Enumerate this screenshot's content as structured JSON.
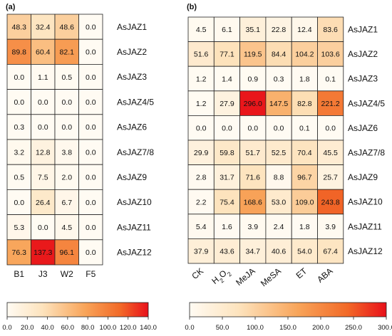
{
  "chart_data": [
    {
      "type": "heatmap",
      "panel_label": "(a)",
      "rows": [
        "AsJAZ1",
        "AsJAZ2",
        "AsJAZ3",
        "AsJAZ4/5",
        "AsJAZ6",
        "AsJAZ7/8",
        "AsJAZ9",
        "AsJAZ10",
        "AsJAZ11",
        "AsJAZ12"
      ],
      "columns": [
        "B1",
        "J3",
        "W2",
        "F5"
      ],
      "values": [
        [
          48.3,
          32.4,
          48.6,
          0.0
        ],
        [
          89.8,
          60.4,
          82.1,
          0.0
        ],
        [
          0.0,
          1.1,
          0.5,
          0.0
        ],
        [
          0.0,
          0.0,
          0.0,
          0.0
        ],
        [
          0.3,
          0.0,
          0.0,
          0.0
        ],
        [
          3.2,
          12.8,
          3.8,
          0.0
        ],
        [
          0.5,
          7.5,
          2.0,
          0.0
        ],
        [
          0.0,
          26.4,
          6.7,
          0.0
        ],
        [
          5.3,
          0.0,
          4.5,
          0.0
        ],
        [
          76.3,
          137.3,
          96.1,
          0.0
        ]
      ],
      "value_labels": [
        [
          "48.3",
          "32.4",
          "48.6",
          "0.0"
        ],
        [
          "89.8",
          "60.4",
          "82.1",
          "0.0"
        ],
        [
          "0.0",
          "1.1",
          "0.5",
          "0.0"
        ],
        [
          "0.0",
          "0.0",
          "0.0",
          "0.0"
        ],
        [
          "0.3",
          "0.0",
          "0.0",
          "0.0"
        ],
        [
          "3.2",
          "12.8",
          "3.8",
          "0.0"
        ],
        [
          "0.5",
          "7.5",
          "2.0",
          "0.0"
        ],
        [
          "0.0",
          "26.4",
          "6.7",
          "0.0"
        ],
        [
          "5.3",
          "0.0",
          "4.5",
          "0.0"
        ],
        [
          "76.3",
          "137.3",
          "96.1",
          "0.0"
        ]
      ],
      "colorbar": {
        "min": 0,
        "max": 140,
        "ticks": [
          0,
          20,
          40,
          60,
          80,
          100,
          120,
          140
        ],
        "tick_labels": [
          "0.0",
          "20.0",
          "40.0",
          "60.0",
          "80.0",
          "100.0",
          "120.0",
          "140.0"
        ]
      }
    },
    {
      "type": "heatmap",
      "panel_label": "(b)",
      "rows": [
        "AsJAZ1",
        "AsJAZ2",
        "AsJAZ3",
        "AsJAZ4/5",
        "AsJAZ6",
        "AsJAZ7/8",
        "AsJAZ9",
        "AsJAZ10",
        "AsJAZ11",
        "AsJAZ12"
      ],
      "columns": [
        "CK",
        "H2O2",
        "MeJA",
        "MeSA",
        "ET",
        "ABA"
      ],
      "values": [
        [
          4.5,
          6.1,
          35.1,
          22.8,
          12.4,
          83.6
        ],
        [
          51.6,
          77.1,
          119.5,
          84.4,
          104.2,
          103.6
        ],
        [
          1.2,
          1.4,
          0.9,
          0.3,
          1.8,
          0.1
        ],
        [
          1.2,
          27.9,
          296.0,
          147.5,
          82.8,
          221.2
        ],
        [
          0.0,
          0.0,
          0.0,
          0.0,
          0.1,
          0.0
        ],
        [
          29.9,
          59.8,
          51.7,
          52.5,
          70.4,
          45.5
        ],
        [
          2.8,
          31.7,
          71.6,
          8.8,
          96.7,
          25.7
        ],
        [
          2.2,
          75.4,
          168.6,
          53.0,
          109.0,
          243.8
        ],
        [
          5.4,
          1.6,
          3.9,
          2.4,
          1.8,
          3.9
        ],
        [
          37.9,
          43.6,
          34.7,
          40.6,
          54.0,
          67.4
        ]
      ],
      "value_labels": [
        [
          "4.5",
          "6.1",
          "35.1",
          "22.8",
          "12.4",
          "83.6"
        ],
        [
          "51.6",
          "77.1",
          "119.5",
          "84.4",
          "104.2",
          "103.6"
        ],
        [
          "1.2",
          "1.4",
          "0.9",
          "0.3",
          "1.8",
          "0.1"
        ],
        [
          "1.2",
          "27.9",
          "296.0",
          "147.5",
          "82.8",
          "221.2"
        ],
        [
          "0.0",
          "0.0",
          "0.0",
          "0.0",
          "0.1",
          "0.0"
        ],
        [
          "29.9",
          "59.8",
          "51.7",
          "52.5",
          "70.4",
          "45.5"
        ],
        [
          "2.8",
          "31.7",
          "71.6",
          "8.8",
          "96.7",
          "25.7"
        ],
        [
          "2.2",
          "75.4",
          "168.6",
          "53.0",
          "109.0",
          "243.8"
        ],
        [
          "5.4",
          "1.6",
          "3.9",
          "2.4",
          "1.8",
          "3.9"
        ],
        [
          "37.9",
          "43.6",
          "34.7",
          "40.6",
          "54.0",
          "67.4"
        ]
      ],
      "colorbar": {
        "min": 0,
        "max": 300,
        "ticks": [
          0,
          50,
          100,
          150,
          200,
          250,
          300
        ],
        "tick_labels": [
          "0.0",
          "50.0",
          "100.0",
          "150.0",
          "200.0",
          "250.0",
          "300.0"
        ]
      }
    }
  ],
  "colors": {
    "scale_low": "#fffbf3",
    "scale_mid1": "#fde3bd",
    "scale_mid2": "#f8a55a",
    "scale_mid3": "#f26a28",
    "scale_high": "#e8101a",
    "grid_line": "#222222"
  }
}
